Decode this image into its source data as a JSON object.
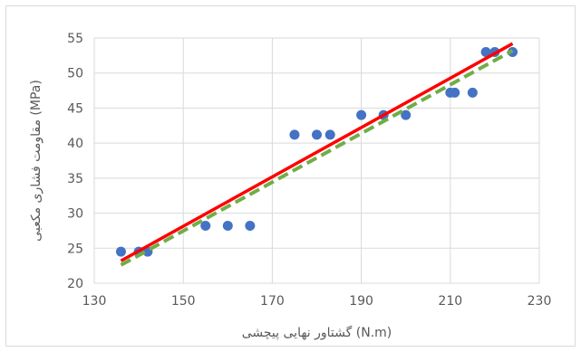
{
  "chart_data": {
    "type": "scatter",
    "title": "",
    "xlabel": "گشتاور نهایی پیچشی (N.m)",
    "ylabel": "مقاومت فشاری مکعبی (MPa)",
    "xlim": [
      130,
      230
    ],
    "ylim": [
      20,
      55
    ],
    "xticks": [
      130,
      150,
      170,
      190,
      210,
      230
    ],
    "yticks": [
      20,
      25,
      30,
      35,
      40,
      45,
      50,
      55
    ],
    "grid": true,
    "legend": "none",
    "series": [
      {
        "kind": "points",
        "color": "#4472c4",
        "x": [
          136,
          140,
          142,
          155,
          160,
          165,
          175,
          180,
          183,
          190,
          195,
          200,
          210,
          211,
          215,
          218,
          220,
          224
        ],
        "y": [
          24.5,
          24.5,
          24.5,
          28.2,
          28.2,
          28.2,
          41.2,
          41.2,
          41.2,
          44,
          44,
          44,
          47.2,
          47.2,
          47.2,
          53,
          53,
          53
        ]
      },
      {
        "kind": "line",
        "style": "dashed",
        "color": "#70ad47",
        "x": [
          136,
          224
        ],
        "y": [
          22.6,
          53.2
        ]
      },
      {
        "kind": "line",
        "style": "solid",
        "color": "#ff0000",
        "x": [
          136,
          224
        ],
        "y": [
          23.2,
          54.2
        ]
      }
    ]
  }
}
